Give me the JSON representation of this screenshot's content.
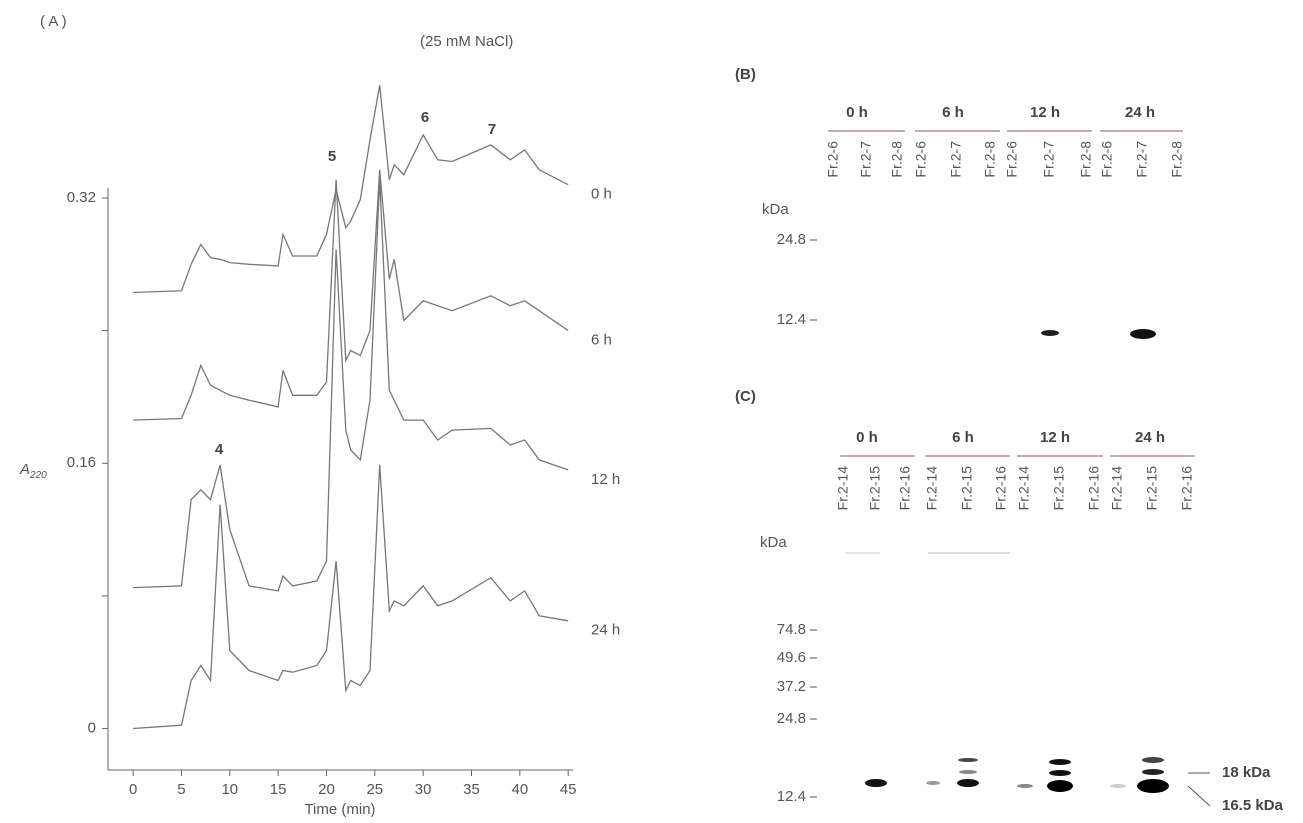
{
  "chart_data": {
    "type": "line",
    "panel_label": "( A )",
    "title": "(25 mM NaCl)",
    "xlabel": "Time (min)",
    "ylabel": "A",
    "ylabel_subscript": "220",
    "xlim": [
      -2.6,
      45.5
    ],
    "ylim": [
      -0.025,
      0.326
    ],
    "xticks": [
      0,
      5,
      10,
      15,
      20,
      25,
      30,
      35,
      40,
      45
    ],
    "yticks": [
      0,
      0.16,
      0.32
    ],
    "minor_yticks": [
      0.08,
      0.24
    ],
    "annotations": [
      "4",
      "5",
      "6",
      "7"
    ],
    "x": [
      0,
      5,
      6,
      7,
      8,
      9,
      10,
      12,
      15,
      15.5,
      16.5,
      19,
      20,
      21,
      22,
      22.5,
      23.5,
      24.5,
      25.5,
      26.5,
      27,
      28,
      30,
      31.5,
      33,
      37,
      39,
      40.5,
      42,
      45
    ],
    "series": [
      {
        "name": "0 h",
        "color": "#777",
        "values": [
          0.263,
          0.264,
          0.28,
          0.292,
          0.284,
          0.283,
          0.281,
          0.28,
          0.279,
          0.298,
          0.285,
          0.285,
          0.298,
          0.325,
          0.302,
          0.306,
          0.319,
          0.355,
          0.388,
          0.331,
          0.34,
          0.334,
          0.358,
          0.343,
          0.342,
          0.352,
          0.343,
          0.349,
          0.337,
          0.328
        ]
      },
      {
        "name": "6 h",
        "color": "#777",
        "values": [
          0.186,
          0.187,
          0.201,
          0.219,
          0.207,
          0.204,
          0.201,
          0.198,
          0.194,
          0.216,
          0.201,
          0.201,
          0.209,
          0.331,
          0.222,
          0.228,
          0.225,
          0.24,
          0.337,
          0.271,
          0.283,
          0.246,
          0.258,
          0.255,
          0.252,
          0.261,
          0.255,
          0.258,
          0.252,
          0.24
        ]
      },
      {
        "name": "12 h",
        "color": "#777",
        "values": [
          0.085,
          0.086,
          0.138,
          0.144,
          0.138,
          0.159,
          0.12,
          0.086,
          0.083,
          0.092,
          0.086,
          0.089,
          0.101,
          0.289,
          0.18,
          0.168,
          0.162,
          0.198,
          0.331,
          0.204,
          0.198,
          0.186,
          0.186,
          0.174,
          0.18,
          0.181,
          0.171,
          0.174,
          0.162,
          0.156
        ]
      },
      {
        "name": "24 h",
        "color": "#777",
        "values": [
          0,
          0.002,
          0.029,
          0.038,
          0.029,
          0.135,
          0.047,
          0.035,
          0.029,
          0.035,
          0.034,
          0.038,
          0.047,
          0.101,
          0.023,
          0.029,
          0.026,
          0.035,
          0.159,
          0.071,
          0.077,
          0.074,
          0.086,
          0.074,
          0.077,
          0.091,
          0.077,
          0.083,
          0.068,
          0.065
        ]
      }
    ]
  },
  "gel_b": {
    "label": "(B)",
    "groups": [
      "0 h",
      "6 h",
      "12 h",
      "24 h"
    ],
    "lanes": [
      "Fr.2-6",
      "Fr.2-7",
      "Fr.2-8"
    ],
    "unit": "kDa",
    "markers": [
      24.8,
      12.4
    ]
  },
  "gel_c": {
    "label": "(C)",
    "groups": [
      "0 h",
      "6 h",
      "12 h",
      "24 h"
    ],
    "lanes": [
      "Fr.2-14",
      "Fr.2-15",
      "Fr.2-16"
    ],
    "unit": "kDa",
    "markers": [
      74.8,
      49.6,
      37.2,
      24.8,
      12.4
    ],
    "annotations": [
      "18 kDa",
      "16.5 kDa"
    ]
  }
}
